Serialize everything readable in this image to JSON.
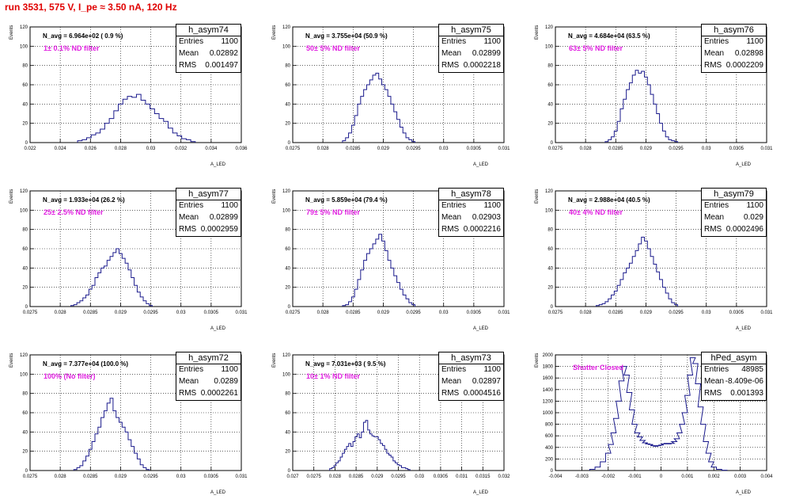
{
  "header": "run 3531,   575 V, I_pe ≈ 3.50 nA, 120 Hz",
  "y_axis_label": "Events",
  "x_axis_label": "A_LED",
  "stats_labels": {
    "entries": "Entries",
    "mean": "Mean",
    "rms": "RMS"
  },
  "colors": {
    "hist": "#1a1a8c",
    "filter_text": "#e020e0",
    "header": "#e00000"
  },
  "panels": [
    {
      "title": "h_asym74",
      "entries": "1100",
      "mean": "0.02892",
      "rms": "0.001497",
      "navg": "N_avg = 6.964e+02 ( 0.9 %)",
      "filter": "1± 0.1% ND filter"
    },
    {
      "title": "h_asym75",
      "entries": "1100",
      "mean": "0.02899",
      "rms": "0.0002218",
      "navg": "N_avg = 3.755e+04 (50.9 %)",
      "filter": "50± 5% ND filter"
    },
    {
      "title": "h_asym76",
      "entries": "1100",
      "mean": "0.02898",
      "rms": "0.0002209",
      "navg": "N_avg = 4.684e+04 (63.5 %)",
      "filter": "63± 5% ND filter"
    },
    {
      "title": "h_asym77",
      "entries": "1100",
      "mean": "0.02899",
      "rms": "0.0002959",
      "navg": "N_avg = 1.933e+04 (26.2 %)",
      "filter": "25± 2.5% ND filter"
    },
    {
      "title": "h_asym78",
      "entries": "1100",
      "mean": "0.02903",
      "rms": "0.0002216",
      "navg": "N_avg = 5.859e+04 (79.4 %)",
      "filter": "79± 5% ND filter"
    },
    {
      "title": "h_asym79",
      "entries": "1100",
      "mean": "0.029",
      "rms": "0.0002496",
      "navg": "N_avg = 2.988e+04 (40.5 %)",
      "filter": "40± 4% ND filter"
    },
    {
      "title": "h_asym72",
      "entries": "1100",
      "mean": "0.0289",
      "rms": "0.0002261",
      "navg": "N_avg = 7.377e+04 (100.0 %)",
      "filter": "100% (No filter)"
    },
    {
      "title": "h_asym73",
      "entries": "1100",
      "mean": "0.02897",
      "rms": "0.0004516",
      "navg": "N_avg = 7.031e+03 ( 9.5 %)",
      "filter": "10± 1% ND filter"
    },
    {
      "title": "hPed_asym",
      "entries": "48985",
      "mean": "-8.409e-06",
      "rms": "0.001393",
      "navg": "",
      "filter": "Shutter Closed"
    }
  ],
  "chart_data": [
    {
      "type": "histogram",
      "panel": "h_asym74",
      "ylim": [
        0,
        120
      ],
      "yticks": [
        0,
        20,
        40,
        60,
        80,
        100,
        120
      ],
      "xticks": [
        "0.022",
        "0.024",
        "0.026",
        "0.028",
        "0.03",
        "0.032",
        "0.034",
        "0.036"
      ],
      "xlim": [
        0.022,
        0.036
      ],
      "bins_x": [
        0.0253,
        0.0256,
        0.0259,
        0.0262,
        0.0265,
        0.0268,
        0.0271,
        0.0274,
        0.0277,
        0.028,
        0.0283,
        0.0286,
        0.0289,
        0.0292,
        0.0295,
        0.0298,
        0.0301,
        0.0304,
        0.0307,
        0.031,
        0.0313,
        0.0316,
        0.0319,
        0.0322,
        0.0325,
        0.0328
      ],
      "values": [
        2,
        3,
        5,
        8,
        10,
        14,
        20,
        25,
        33,
        40,
        45,
        48,
        47,
        50,
        44,
        40,
        35,
        30,
        25,
        22,
        15,
        10,
        7,
        4,
        3,
        1
      ]
    },
    {
      "type": "histogram",
      "panel": "h_asym75",
      "ylim": [
        0,
        120
      ],
      "yticks": [
        0,
        20,
        40,
        60,
        80,
        100,
        120
      ],
      "xticks": [
        "0.0275",
        "0.028",
        "0.0285",
        "0.029",
        "0.0295",
        "0.03",
        "0.0305",
        "0.031"
      ],
      "xlim": [
        0.0275,
        0.031
      ],
      "bins_x": [
        0.02835,
        0.0284,
        0.02845,
        0.0285,
        0.02855,
        0.0286,
        0.02865,
        0.0287,
        0.02875,
        0.0288,
        0.02885,
        0.0289,
        0.02895,
        0.029,
        0.02905,
        0.0291,
        0.02915,
        0.0292,
        0.02925,
        0.0293,
        0.02935,
        0.0294,
        0.02945,
        0.0295
      ],
      "values": [
        2,
        5,
        10,
        18,
        28,
        40,
        48,
        55,
        60,
        65,
        70,
        72,
        66,
        60,
        55,
        48,
        40,
        32,
        24,
        16,
        10,
        5,
        3,
        1
      ]
    },
    {
      "type": "histogram",
      "panel": "h_asym76",
      "ylim": [
        0,
        120
      ],
      "yticks": [
        0,
        20,
        40,
        60,
        80,
        100,
        120
      ],
      "xticks": [
        "0.0275",
        "0.028",
        "0.0285",
        "0.029",
        "0.0295",
        "0.03",
        "0.0305",
        "0.031"
      ],
      "xlim": [
        0.0275,
        0.031
      ],
      "bins_x": [
        0.02835,
        0.0284,
        0.02845,
        0.0285,
        0.02855,
        0.0286,
        0.02865,
        0.0287,
        0.02875,
        0.0288,
        0.02885,
        0.0289,
        0.02895,
        0.029,
        0.02905,
        0.0291,
        0.02915,
        0.0292,
        0.02925,
        0.0293,
        0.02935,
        0.0294,
        0.02945,
        0.0295
      ],
      "values": [
        1,
        3,
        6,
        12,
        22,
        35,
        45,
        55,
        62,
        70,
        75,
        72,
        74,
        68,
        60,
        50,
        40,
        30,
        20,
        12,
        6,
        3,
        2,
        1
      ]
    },
    {
      "type": "histogram",
      "panel": "h_asym77",
      "ylim": [
        0,
        120
      ],
      "yticks": [
        0,
        20,
        40,
        60,
        80,
        100,
        120
      ],
      "xticks": [
        "0.0275",
        "0.028",
        "0.0285",
        "0.029",
        "0.0295",
        "0.03",
        "0.0305",
        "0.031"
      ],
      "xlim": [
        0.0275,
        0.031
      ],
      "bins_x": [
        0.0282,
        0.02825,
        0.0283,
        0.02835,
        0.0284,
        0.02845,
        0.0285,
        0.02855,
        0.0286,
        0.02865,
        0.0287,
        0.02875,
        0.0288,
        0.02885,
        0.0289,
        0.02895,
        0.029,
        0.02905,
        0.0291,
        0.02915,
        0.0292,
        0.02925,
        0.0293,
        0.02935,
        0.0294,
        0.02945,
        0.0295
      ],
      "values": [
        1,
        2,
        4,
        6,
        9,
        12,
        18,
        22,
        30,
        35,
        40,
        42,
        48,
        52,
        56,
        60,
        55,
        50,
        45,
        38,
        30,
        22,
        15,
        10,
        6,
        3,
        1
      ]
    },
    {
      "type": "histogram",
      "panel": "h_asym78",
      "ylim": [
        0,
        120
      ],
      "yticks": [
        0,
        20,
        40,
        60,
        80,
        100,
        120
      ],
      "xticks": [
        "0.0275",
        "0.028",
        "0.0285",
        "0.029",
        "0.0295",
        "0.03",
        "0.0305",
        "0.031"
      ],
      "xlim": [
        0.0275,
        0.031
      ],
      "bins_x": [
        0.02835,
        0.0284,
        0.02845,
        0.0285,
        0.02855,
        0.0286,
        0.02865,
        0.0287,
        0.02875,
        0.0288,
        0.02885,
        0.0289,
        0.02895,
        0.029,
        0.02905,
        0.0291,
        0.02915,
        0.0292,
        0.02925,
        0.0293,
        0.02935,
        0.0294,
        0.02945,
        0.0295
      ],
      "values": [
        1,
        2,
        5,
        10,
        18,
        28,
        38,
        48,
        55,
        60,
        65,
        70,
        75,
        68,
        58,
        48,
        40,
        32,
        25,
        18,
        12,
        8,
        4,
        2
      ]
    },
    {
      "type": "histogram",
      "panel": "h_asym79",
      "ylim": [
        0,
        120
      ],
      "yticks": [
        0,
        20,
        40,
        60,
        80,
        100,
        120
      ],
      "xticks": [
        "0.0275",
        "0.028",
        "0.0285",
        "0.029",
        "0.0295",
        "0.03",
        "0.0305",
        "0.031"
      ],
      "xlim": [
        0.0275,
        0.031
      ],
      "bins_x": [
        0.0282,
        0.02825,
        0.0283,
        0.02835,
        0.0284,
        0.02845,
        0.0285,
        0.02855,
        0.0286,
        0.02865,
        0.0287,
        0.02875,
        0.0288,
        0.02885,
        0.0289,
        0.02895,
        0.029,
        0.02905,
        0.0291,
        0.02915,
        0.0292,
        0.02925,
        0.0293,
        0.02935,
        0.0294,
        0.02945,
        0.0295
      ],
      "values": [
        1,
        2,
        3,
        5,
        8,
        12,
        16,
        22,
        28,
        35,
        40,
        45,
        52,
        58,
        65,
        72,
        68,
        60,
        52,
        44,
        36,
        28,
        20,
        14,
        8,
        4,
        2
      ]
    },
    {
      "type": "histogram",
      "panel": "h_asym72",
      "ylim": [
        0,
        120
      ],
      "yticks": [
        0,
        20,
        40,
        60,
        80,
        100,
        120
      ],
      "xticks": [
        "0.0275",
        "0.028",
        "0.0285",
        "0.029",
        "0.0295",
        "0.03",
        "0.0305",
        "0.031"
      ],
      "xlim": [
        0.0275,
        0.031
      ],
      "bins_x": [
        0.02825,
        0.0283,
        0.02835,
        0.0284,
        0.02845,
        0.0285,
        0.02855,
        0.0286,
        0.02865,
        0.0287,
        0.02875,
        0.0288,
        0.02885,
        0.0289,
        0.02895,
        0.029,
        0.02905,
        0.0291,
        0.02915,
        0.0292,
        0.02925,
        0.0293,
        0.02935,
        0.0294,
        0.02945
      ],
      "values": [
        1,
        3,
        5,
        10,
        15,
        22,
        30,
        38,
        45,
        55,
        62,
        70,
        75,
        62,
        55,
        50,
        45,
        40,
        32,
        25,
        18,
        12,
        6,
        3,
        1
      ]
    },
    {
      "type": "histogram",
      "panel": "h_asym73",
      "ylim": [
        0,
        120
      ],
      "yticks": [
        0,
        20,
        40,
        60,
        80,
        100,
        120
      ],
      "xticks": [
        "0.027",
        "0.0275",
        "0.028",
        "0.0285",
        "0.029",
        "0.0295",
        "0.03",
        "0.0305",
        "0.031",
        "0.0315",
        "0.032"
      ],
      "xlim": [
        0.027,
        0.032
      ],
      "bins_x": [
        0.0279,
        0.02795,
        0.028,
        0.02805,
        0.0281,
        0.02815,
        0.0282,
        0.02825,
        0.0283,
        0.02835,
        0.0284,
        0.02845,
        0.0285,
        0.02855,
        0.0286,
        0.02865,
        0.0287,
        0.02875,
        0.0288,
        0.02885,
        0.0289,
        0.02895,
        0.029,
        0.02905,
        0.0291,
        0.02915,
        0.0292,
        0.02925,
        0.0293,
        0.02935,
        0.0294,
        0.02945,
        0.0295,
        0.02955,
        0.0296,
        0.02965,
        0.0297,
        0.02975
      ],
      "values": [
        2,
        3,
        5,
        8,
        10,
        14,
        18,
        22,
        25,
        28,
        25,
        30,
        35,
        38,
        34,
        40,
        50,
        52,
        42,
        38,
        36,
        35,
        35,
        32,
        28,
        26,
        22,
        18,
        16,
        14,
        10,
        8,
        6,
        5,
        3,
        3,
        2,
        1
      ]
    },
    {
      "type": "histogram",
      "panel": "hPed_asym",
      "ylim": [
        0,
        2000
      ],
      "yticks": [
        0,
        200,
        400,
        600,
        800,
        1000,
        1200,
        1400,
        1600,
        1800,
        2000
      ],
      "xticks": [
        "-0.004",
        "-0.003",
        "-0.002",
        "-0.001",
        "0",
        "0.001",
        "0.002",
        "0.003",
        "0.004"
      ],
      "xlim": [
        -0.004,
        0.004
      ],
      "bins_x": [
        -0.0026,
        -0.0024,
        -0.0022,
        -0.002,
        -0.0019,
        -0.0018,
        -0.0017,
        -0.0016,
        -0.0015,
        -0.0014,
        -0.0013,
        -0.0012,
        -0.0011,
        -0.001,
        -0.0009,
        -0.0008,
        -0.0007,
        -0.0006,
        -0.0005,
        -0.0004,
        -0.0003,
        -0.0002,
        -0.0001,
        0,
        0.0001,
        0.0002,
        0.0003,
        0.0004,
        0.0005,
        0.0006,
        0.0007,
        0.0008,
        0.0009,
        0.001,
        0.0011,
        0.0012,
        0.0013,
        0.0014,
        0.0015,
        0.0016,
        0.0017,
        0.0018,
        0.0019,
        0.002,
        0.0022,
        0.0024
      ],
      "values": [
        20,
        60,
        150,
        300,
        450,
        650,
        900,
        1200,
        1550,
        1800,
        1650,
        1350,
        1050,
        800,
        650,
        580,
        520,
        480,
        460,
        450,
        430,
        420,
        430,
        440,
        460,
        470,
        460,
        470,
        500,
        550,
        650,
        800,
        1000,
        1300,
        1650,
        1950,
        1850,
        1500,
        1100,
        800,
        500,
        300,
        150,
        60,
        20,
        5
      ]
    }
  ]
}
